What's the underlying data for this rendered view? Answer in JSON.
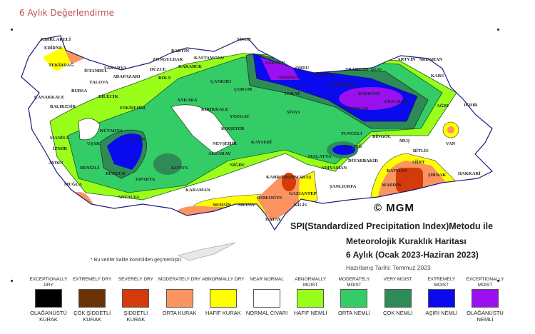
{
  "page_title": "6 Aylık Değerlendirme",
  "map": {
    "copyright": "© MGM",
    "heading_line1": "SPI(Standardized Precipitation Index)Metodu ile",
    "heading_line2": "Meteorolojik Kuraklık Haritası",
    "heading_line3": "6 Aylık (Ocak 2023-Haziran 2023)",
    "prepared": "Hazırlanış Tarihi: Temmuz 2023",
    "note": "* Bu veriler kalite kontrolden geçmemiştir.",
    "cities": [
      "KIRKLARELİ",
      "EDİRNE",
      "TEKİRDAĞ",
      "İSTANBUL",
      "ÇANAKKALE",
      "YALOVA",
      "BURSA",
      "BALIKESİR",
      "BİLECİK",
      "ESKİŞEHİR",
      "KÜTAHYA",
      "MANİSA",
      "İZMİR",
      "AYDIN",
      "UŞAK",
      "DENİZLİ",
      "MUĞLA",
      "AFYON",
      "BURDUR",
      "ISPARTA",
      "ANTALYA",
      "KONYA",
      "KARAMAN",
      "AKSARAY",
      "NİĞDE",
      "NEVŞEHİR",
      "KAYSERİ",
      "KIRŞEHİR",
      "SAKARYA",
      "ADAPAZARI",
      "DÜZCE",
      "BOLU",
      "ZONGULDAK",
      "BARTIN",
      "KARABÜK",
      "KASTAMONU",
      "ÇANKIRI",
      "ANKARA",
      "KIRIKKALE",
      "YOZGAT",
      "ÇORUM",
      "SİNOP",
      "SAMSUN",
      "AMASYA",
      "TOKAT",
      "ORDU",
      "GİRESUN",
      "TRABZON",
      "RİZE",
      "ARTVİN",
      "ARDAHAN",
      "KARS",
      "IĞDIR",
      "AĞRI",
      "GÜMÜŞHANE",
      "BAYBURT",
      "ERZURUM",
      "ERZİNCAN",
      "SİVAS",
      "TUNCELİ",
      "BİNGÖL",
      "MUŞ",
      "VAN",
      "BİTLİS",
      "ELAZIĞ",
      "MALATYA",
      "ADIYAMAN",
      "DİYARBAKIR",
      "BATMAN",
      "SİİRT",
      "ŞIRNAK",
      "HAKKARİ",
      "MARDİN",
      "ŞANLIURFA",
      "GAZİANTEP",
      "KAHRAMANMARAŞ",
      "OSMANİYE",
      "ADANA",
      "MERSİN",
      "KİLİS",
      "HATAY"
    ]
  },
  "legend": [
    {
      "en": "EXCEPTIONALLY DRY",
      "tr": "OLAĞANÜSTÜ KURAK",
      "color": "#000000"
    },
    {
      "en": "EXTREMELY DRY",
      "tr": "ÇOK ŞİDDETLİ KURAK",
      "color": "#6b3206"
    },
    {
      "en": "SEVERELY DRY",
      "tr": "ŞİDDETLİ KURAK",
      "color": "#d53a0a"
    },
    {
      "en": "MODERATELY DRY",
      "tr": "ORTA KURAK",
      "color": "#fb9461"
    },
    {
      "en": "ABNORMALLY DRY",
      "tr": "HAFİF KURAK",
      "color": "#ffff00"
    },
    {
      "en": "NEAR NORMAL",
      "tr": "NORMAL CİVARI",
      "color": "#ffffff"
    },
    {
      "en": "ABNORMALLY MOIST",
      "tr": "HAFİF NEMLİ",
      "color": "#99ff1a"
    },
    {
      "en": "MODERATELY MOIST",
      "tr": "ORTA NEMLİ",
      "color": "#33cc66"
    },
    {
      "en": "VERY MOIST",
      "tr": "ÇOK NEMLİ",
      "color": "#2e8b57"
    },
    {
      "en": "EXTREMELY MOIST",
      "tr": "AŞIRI NEMLİ",
      "color": "#0a0aee"
    },
    {
      "en": "EXCEPTIONALLY MOIST",
      "tr": "OLAĞANÜSTÜ NEMLİ",
      "color": "#9a10f0"
    }
  ]
}
